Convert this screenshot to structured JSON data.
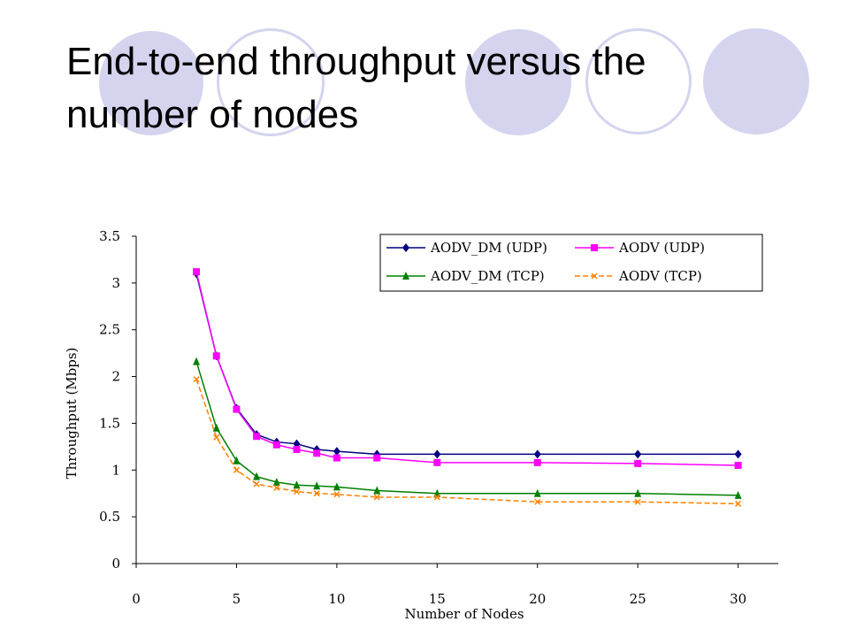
{
  "slide": {
    "title_line1": "End-to-end throughput versus the",
    "title_line2": "number of nodes"
  },
  "colors": {
    "decoration": "#d4d4ef"
  },
  "chart_data": {
    "type": "line",
    "xlabel": "Number of Nodes",
    "ylabel": "Throughput (Mbps)",
    "xlim": [
      0,
      32
    ],
    "ylim": [
      0,
      3.5
    ],
    "x_ticks": [
      "0",
      "5",
      "10",
      "15",
      "20",
      "25",
      "30"
    ],
    "y_ticks": [
      "0",
      "0.5",
      "1",
      "1.5",
      "2",
      "2.5",
      "3",
      "3.5"
    ],
    "grid": false,
    "legend_position": "top-right",
    "x": [
      3,
      4,
      5,
      6,
      7,
      8,
      9,
      10,
      12,
      15,
      20,
      25,
      30
    ],
    "series": [
      {
        "name": "AODV_DM (UDP)",
        "color": "#000080",
        "marker": "diamond",
        "dash": "solid",
        "values": [
          3.1,
          2.22,
          1.66,
          1.38,
          1.3,
          1.28,
          1.22,
          1.2,
          1.17,
          1.17,
          1.17,
          1.17,
          1.17
        ]
      },
      {
        "name": "AODV (UDP)",
        "color": "#ff00ff",
        "marker": "square",
        "dash": "solid",
        "values": [
          3.12,
          2.22,
          1.65,
          1.36,
          1.27,
          1.22,
          1.18,
          1.13,
          1.13,
          1.08,
          1.08,
          1.07,
          1.05
        ]
      },
      {
        "name": "AODV_DM (TCP)",
        "color": "#008000",
        "marker": "triangle",
        "dash": "solid",
        "values": [
          2.16,
          1.45,
          1.1,
          0.93,
          0.87,
          0.84,
          0.83,
          0.82,
          0.78,
          0.75,
          0.75,
          0.75,
          0.73
        ]
      },
      {
        "name": "AODV (TCP)",
        "color": "#ff8000",
        "marker": "x",
        "dash": "dashed",
        "values": [
          1.97,
          1.35,
          1.0,
          0.85,
          0.81,
          0.77,
          0.75,
          0.74,
          0.71,
          0.71,
          0.66,
          0.66,
          0.64
        ]
      }
    ]
  }
}
